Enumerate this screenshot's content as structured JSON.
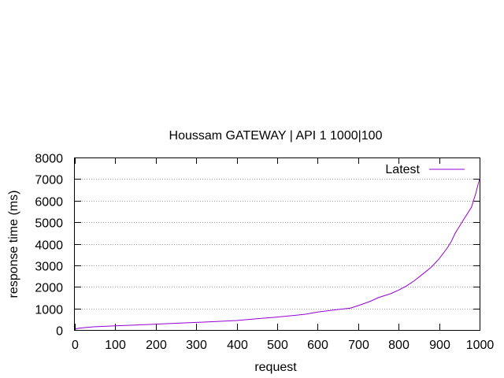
{
  "chart_data": {
    "type": "line",
    "title": "Houssam GATEWAY |  API 1 1000|100",
    "xlabel": "request",
    "ylabel": "response time (ms)",
    "xlim": [
      0,
      1000
    ],
    "ylim": [
      0,
      8000
    ],
    "xticks": [
      0,
      100,
      200,
      300,
      400,
      500,
      600,
      700,
      800,
      900,
      1000
    ],
    "yticks": [
      0,
      1000,
      2000,
      3000,
      4000,
      5000,
      6000,
      7000,
      8000
    ],
    "grid": "horizontal dotted",
    "legend_position": "top-right",
    "series": [
      {
        "name": "Latest",
        "color": "#9400d3",
        "x": [
          1,
          10,
          30,
          50,
          100,
          150,
          200,
          250,
          300,
          350,
          400,
          430,
          450,
          500,
          550,
          570,
          600,
          650,
          680,
          700,
          730,
          750,
          780,
          800,
          820,
          840,
          860,
          880,
          900,
          920,
          930,
          940,
          950,
          960,
          970,
          980,
          990,
          997,
          1000
        ],
        "values": [
          40,
          80,
          120,
          150,
          190,
          230,
          270,
          310,
          350,
          390,
          440,
          490,
          520,
          600,
          690,
          730,
          830,
          950,
          1010,
          1130,
          1330,
          1500,
          1680,
          1850,
          2050,
          2300,
          2600,
          2900,
          3300,
          3800,
          4100,
          4500,
          4800,
          5100,
          5400,
          5700,
          6300,
          6800,
          7000
        ]
      }
    ]
  }
}
